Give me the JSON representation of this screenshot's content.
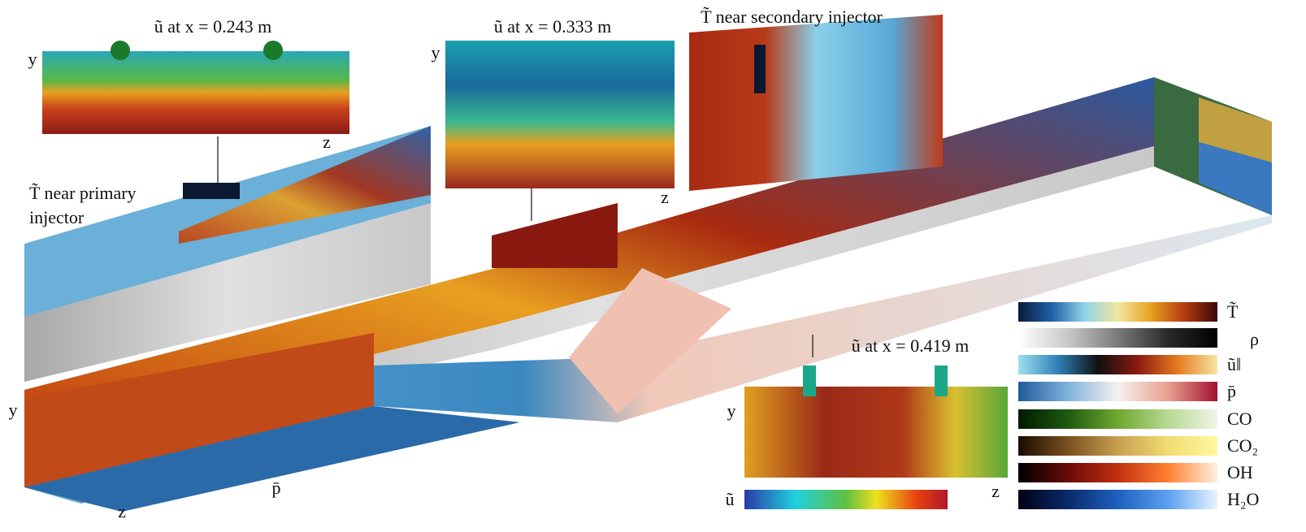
{
  "insets": [
    {
      "title": "ũ at x = 0.243 m",
      "y": "y",
      "z": "z"
    },
    {
      "title": "ũ at x = 0.333 m",
      "y": "y",
      "z": "z"
    },
    {
      "title": "T̃ near secondary injector"
    },
    {
      "title": "ũ at x = 0.419 m",
      "y": "y",
      "z": "z",
      "colorbar": "ũ"
    }
  ],
  "primary_label": [
    "T̃ near primary",
    "injector"
  ],
  "main_axes": {
    "y": "y",
    "z": "z",
    "p": "p̄"
  },
  "colorbars": [
    {
      "label": "T̃",
      "colors": [
        "#0a1a3a",
        "#1f5fa8",
        "#8fd3e8",
        "#f2e6a0",
        "#e8a020",
        "#b43a10",
        "#3a0808"
      ]
    },
    {
      "label": "ρ",
      "colors": [
        "#ffffff",
        "#c8c8c8",
        "#7a7a7a",
        "#2a2a2a",
        "#000000"
      ]
    },
    {
      "label": "ũ‖",
      "colors": [
        "#9fe0ef",
        "#2f7fb8",
        "#101010",
        "#8a1a10",
        "#e87a20",
        "#f6e6a0"
      ]
    },
    {
      "label": "p̄",
      "colors": [
        "#1f5a9a",
        "#7fb2dc",
        "#f7f2ef",
        "#eaa090",
        "#a01030"
      ]
    },
    {
      "label": "CO",
      "colors": [
        "#001a00",
        "#1f5a10",
        "#6fa830",
        "#b8d890",
        "#f0f6e8"
      ]
    },
    {
      "label": "CO₂",
      "colors": [
        "#1a0c00",
        "#7a5020",
        "#c8a050",
        "#f0dc70",
        "#fff8a0"
      ]
    },
    {
      "label": "OH",
      "colors": [
        "#000000",
        "#6a0a0a",
        "#c03010",
        "#ff8030",
        "#fff0e0"
      ]
    },
    {
      "label": "H₂O",
      "colors": [
        "#000014",
        "#0a2a6a",
        "#1f60c0",
        "#5aa0f0",
        "#e8f4ff"
      ]
    }
  ]
}
